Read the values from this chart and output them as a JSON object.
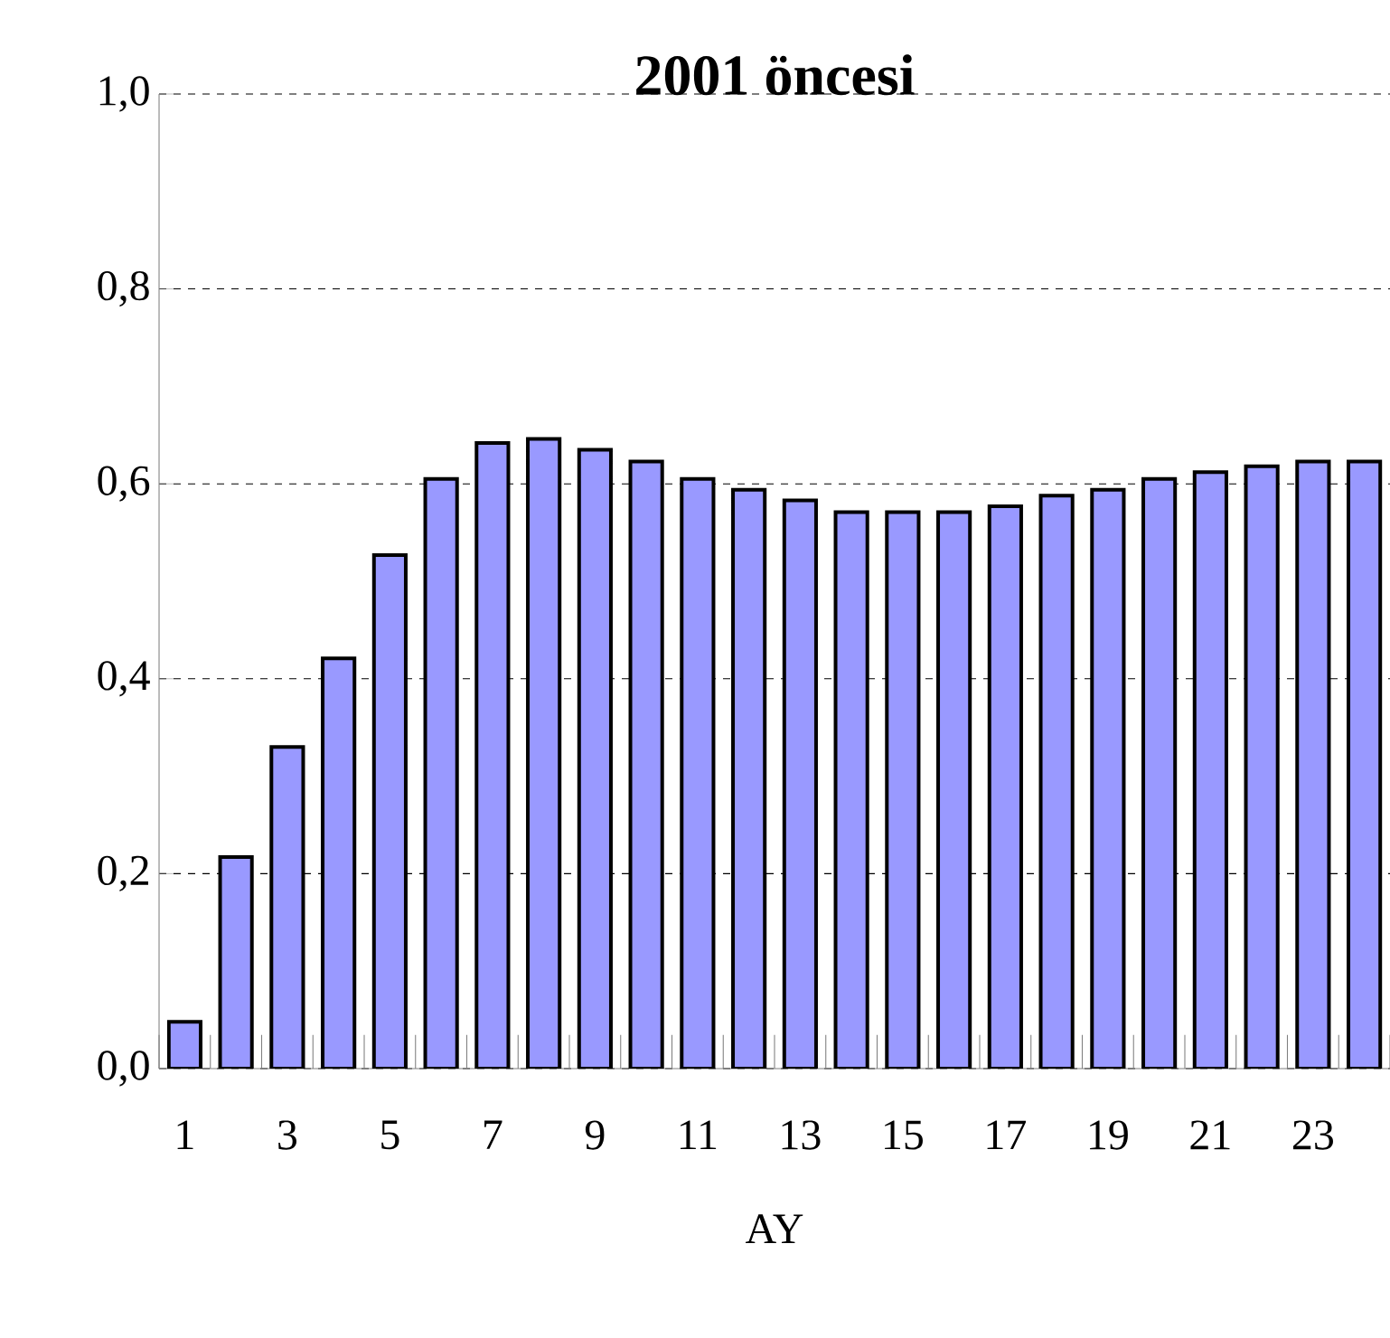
{
  "chart_data": {
    "type": "bar",
    "title": "2001 öncesi",
    "xlabel": "AY",
    "categories": [
      "1",
      null,
      "3",
      null,
      "5",
      null,
      "7",
      null,
      "9",
      null,
      "11",
      null,
      "13",
      null,
      "15",
      null,
      "17",
      null,
      "19",
      null,
      "21",
      null,
      "23",
      null
    ],
    "values": [
      0.048,
      0.217,
      0.33,
      0.421,
      0.527,
      0.605,
      0.642,
      0.646,
      0.635,
      0.623,
      0.605,
      0.594,
      0.583,
      0.571,
      0.571,
      0.571,
      0.577,
      0.588,
      0.594,
      0.605,
      0.612,
      0.618,
      0.623,
      0.623
    ],
    "color": "#9999ff",
    "ylim": [
      0,
      1
    ],
    "yticks": [
      {
        "value": 0,
        "label": "0,0"
      },
      {
        "value": 0.2,
        "label": "0,2"
      },
      {
        "value": 0.4,
        "label": "0,4"
      },
      {
        "value": 0.6,
        "label": "0,6"
      },
      {
        "value": 0.8,
        "label": "0,8"
      },
      {
        "value": 1,
        "label": "1,0"
      }
    ],
    "grid": "y"
  }
}
